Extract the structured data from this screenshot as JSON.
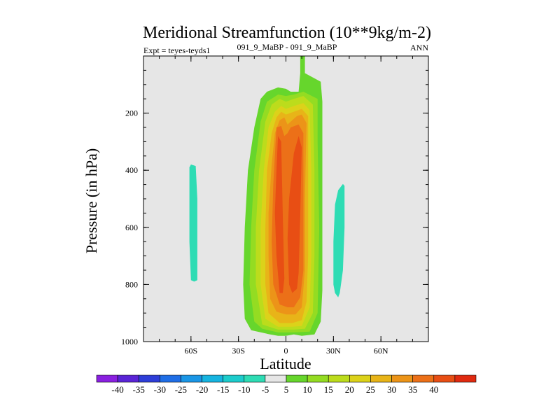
{
  "chart_data": {
    "type": "heatmap",
    "title": "Meridional Streamfunction (10**9kg/m-2)",
    "subtitle_left": "Expt = teyes-teyds1",
    "subtitle_center": "091_9_MaBP - 091_9_MaBP",
    "subtitle_right": "ANN",
    "xlabel": "Latitude",
    "ylabel": "Pressure (in hPa)",
    "xlim": [
      -90,
      90
    ],
    "ylim": [
      1000,
      0
    ],
    "x_ticks": [
      {
        "value": -60,
        "label": "60S"
      },
      {
        "value": -30,
        "label": "30S"
      },
      {
        "value": 0,
        "label": "0"
      },
      {
        "value": 30,
        "label": "30N"
      },
      {
        "value": 60,
        "label": "60N"
      }
    ],
    "y_ticks": [
      {
        "value": 200,
        "label": "200"
      },
      {
        "value": 400,
        "label": "400"
      },
      {
        "value": 600,
        "label": "600"
      },
      {
        "value": 800,
        "label": "800"
      },
      {
        "value": 1000,
        "label": "1000"
      }
    ],
    "background_color": "#e6e6e6",
    "colorbar": {
      "colors": [
        "#8a20e0",
        "#5a24d6",
        "#2e3ed8",
        "#1f6ee6",
        "#1a96e6",
        "#16b4e0",
        "#1ccccc",
        "#2edcb4",
        "#e6e6e6",
        "#66d62c",
        "#94dc22",
        "#bcdc1c",
        "#dcd21a",
        "#e8b418",
        "#ec9418",
        "#ec7018",
        "#e84e14",
        "#e02a10"
      ],
      "labels": [
        "-40",
        "-35",
        "-30",
        "-25",
        "-20",
        "-15",
        "-10",
        "-5",
        "5",
        "10",
        "15",
        "20",
        "25",
        "30",
        "35",
        "40"
      ]
    },
    "contours": [
      {
        "level": "-10 to -5",
        "color": "#2edcb4",
        "polygons": [
          [
            [
              -60,
              380
            ],
            [
              -57,
              385
            ],
            [
              -56,
              500
            ],
            [
              -56,
              650
            ],
            [
              -56,
              785
            ],
            [
              -58,
              790
            ],
            [
              -60,
              785
            ],
            [
              -61,
              650
            ],
            [
              -61,
              500
            ],
            [
              -61,
              390
            ]
          ],
          [
            [
              36,
              448
            ],
            [
              37,
              455
            ],
            [
              37,
              600
            ],
            [
              36,
              750
            ],
            [
              34,
              830
            ],
            [
              33,
              845
            ],
            [
              31,
              830
            ],
            [
              30,
              800
            ],
            [
              30,
              650
            ],
            [
              31,
              520
            ],
            [
              33,
              470
            ]
          ]
        ]
      },
      {
        "level": "5 to 10",
        "color": "#66d62c",
        "polygons": [
          [
            [
              9,
              0
            ],
            [
              12,
              0
            ],
            [
              12,
              60
            ],
            [
              22,
              90
            ],
            [
              23,
              160
            ],
            [
              23,
              500
            ],
            [
              23,
              820
            ],
            [
              22,
              930
            ],
            [
              18,
              975
            ],
            [
              10,
              980
            ],
            [
              5,
              975
            ],
            [
              0,
              980
            ],
            [
              -5,
              980
            ],
            [
              -10,
              975
            ],
            [
              -22,
              960
            ],
            [
              -26,
              920
            ],
            [
              -27,
              800
            ],
            [
              -26,
              600
            ],
            [
              -24,
              400
            ],
            [
              -20,
              250
            ],
            [
              -16,
              150
            ],
            [
              -12,
              125
            ],
            [
              -5,
              110
            ],
            [
              0,
              115
            ],
            [
              3,
              125
            ],
            [
              8,
              125
            ],
            [
              9,
              60
            ]
          ]
        ]
      },
      {
        "level": "10 to 15",
        "color": "#94dc22",
        "polygons": [
          [
            [
              11,
              125
            ],
            [
              20,
              150
            ],
            [
              20,
              300
            ],
            [
              21,
              600
            ],
            [
              20,
              900
            ],
            [
              15,
              965
            ],
            [
              5,
              968
            ],
            [
              -5,
              968
            ],
            [
              -15,
              955
            ],
            [
              -20,
              930
            ],
            [
              -23,
              800
            ],
            [
              -22,
              600
            ],
            [
              -20,
              400
            ],
            [
              -16,
              230
            ],
            [
              -12,
              160
            ],
            [
              -5,
              135
            ],
            [
              0,
              140
            ],
            [
              5,
              135
            ]
          ]
        ]
      },
      {
        "level": "15 to 20",
        "color": "#bcdc1c",
        "polygons": [
          [
            [
              11,
              140
            ],
            [
              17,
              170
            ],
            [
              18,
              400
            ],
            [
              18,
              700
            ],
            [
              17,
              900
            ],
            [
              12,
              955
            ],
            [
              5,
              958
            ],
            [
              -5,
              958
            ],
            [
              -15,
              940
            ],
            [
              -19,
              800
            ],
            [
              -19,
              600
            ],
            [
              -17,
              400
            ],
            [
              -13,
              230
            ],
            [
              -9,
              170
            ],
            [
              -4,
              150
            ],
            [
              0,
              160
            ],
            [
              5,
              150
            ]
          ]
        ]
      },
      {
        "level": "20 to 25",
        "color": "#dcd21a",
        "polygons": [
          [
            [
              11,
              165
            ],
            [
              15,
              190
            ],
            [
              16,
              400
            ],
            [
              16,
              700
            ],
            [
              15,
              880
            ],
            [
              10,
              945
            ],
            [
              4,
              948
            ],
            [
              -5,
              948
            ],
            [
              -13,
              920
            ],
            [
              -16,
              800
            ],
            [
              -16,
              600
            ],
            [
              -14,
              400
            ],
            [
              -11,
              250
            ],
            [
              -7,
              195
            ],
            [
              -3,
              175
            ],
            [
              0,
              185
            ],
            [
              5,
              175
            ]
          ]
        ]
      },
      {
        "level": "25 to 30",
        "color": "#e8b418",
        "polygons": [
          [
            [
              10,
              185
            ],
            [
              14,
              210
            ],
            [
              14,
              400
            ],
            [
              14,
              700
            ],
            [
              13,
              860
            ],
            [
              10,
              925
            ],
            [
              4,
              935
            ],
            [
              -4,
              935
            ],
            [
              -11,
              900
            ],
            [
              -13,
              800
            ],
            [
              -13,
              600
            ],
            [
              -12,
              400
            ],
            [
              -9,
              270
            ],
            [
              -6,
              215
            ],
            [
              -3,
              195
            ],
            [
              0,
              205
            ],
            [
              5,
              195
            ]
          ]
        ]
      },
      {
        "level": "30 to 35",
        "color": "#ec9418",
        "polygons": [
          [
            [
              10,
              205
            ],
            [
              13,
              235
            ],
            [
              12,
              500
            ],
            [
              12,
              750
            ],
            [
              10,
              880
            ],
            [
              6,
              905
            ],
            [
              0,
              905
            ],
            [
              -6,
              895
            ],
            [
              -10,
              850
            ],
            [
              -11,
              700
            ],
            [
              -11,
              550
            ],
            [
              -9,
              380
            ],
            [
              -7,
              270
            ],
            [
              -4,
              225
            ],
            [
              -1,
              215
            ],
            [
              1,
              240
            ],
            [
              4,
              225
            ],
            [
              7,
              210
            ]
          ]
        ]
      },
      {
        "level": "35 to 40",
        "color": "#ec7018",
        "polygons": [
          [
            [
              -6,
              250
            ],
            [
              -3,
              245
            ],
            [
              -1,
              280
            ],
            [
              1,
              270
            ],
            [
              3,
              250
            ],
            [
              8,
              240
            ],
            [
              11,
              270
            ],
            [
              11,
              520
            ],
            [
              11,
              750
            ],
            [
              9,
              845
            ],
            [
              5,
              880
            ],
            [
              1,
              880
            ],
            [
              -4,
              870
            ],
            [
              -8,
              800
            ],
            [
              -9,
              650
            ],
            [
              -8,
              450
            ]
          ]
        ]
      },
      {
        "level": "> 40",
        "color": "#e84e14",
        "polygons": [
          [
            [
              -5,
              280
            ],
            [
              -3,
              300
            ],
            [
              -2,
              560
            ],
            [
              -1,
              780
            ],
            [
              -2,
              830
            ],
            [
              -4,
              830
            ],
            [
              -6,
              700
            ],
            [
              -7,
              550
            ],
            [
              -6,
              400
            ]
          ],
          [
            [
              8,
              280
            ],
            [
              10,
              320
            ],
            [
              9,
              560
            ],
            [
              8,
              760
            ],
            [
              7,
              815
            ],
            [
              4,
              830
            ],
            [
              2,
              800
            ],
            [
              1,
              640
            ],
            [
              2,
              500
            ],
            [
              5,
              340
            ]
          ]
        ]
      }
    ]
  }
}
